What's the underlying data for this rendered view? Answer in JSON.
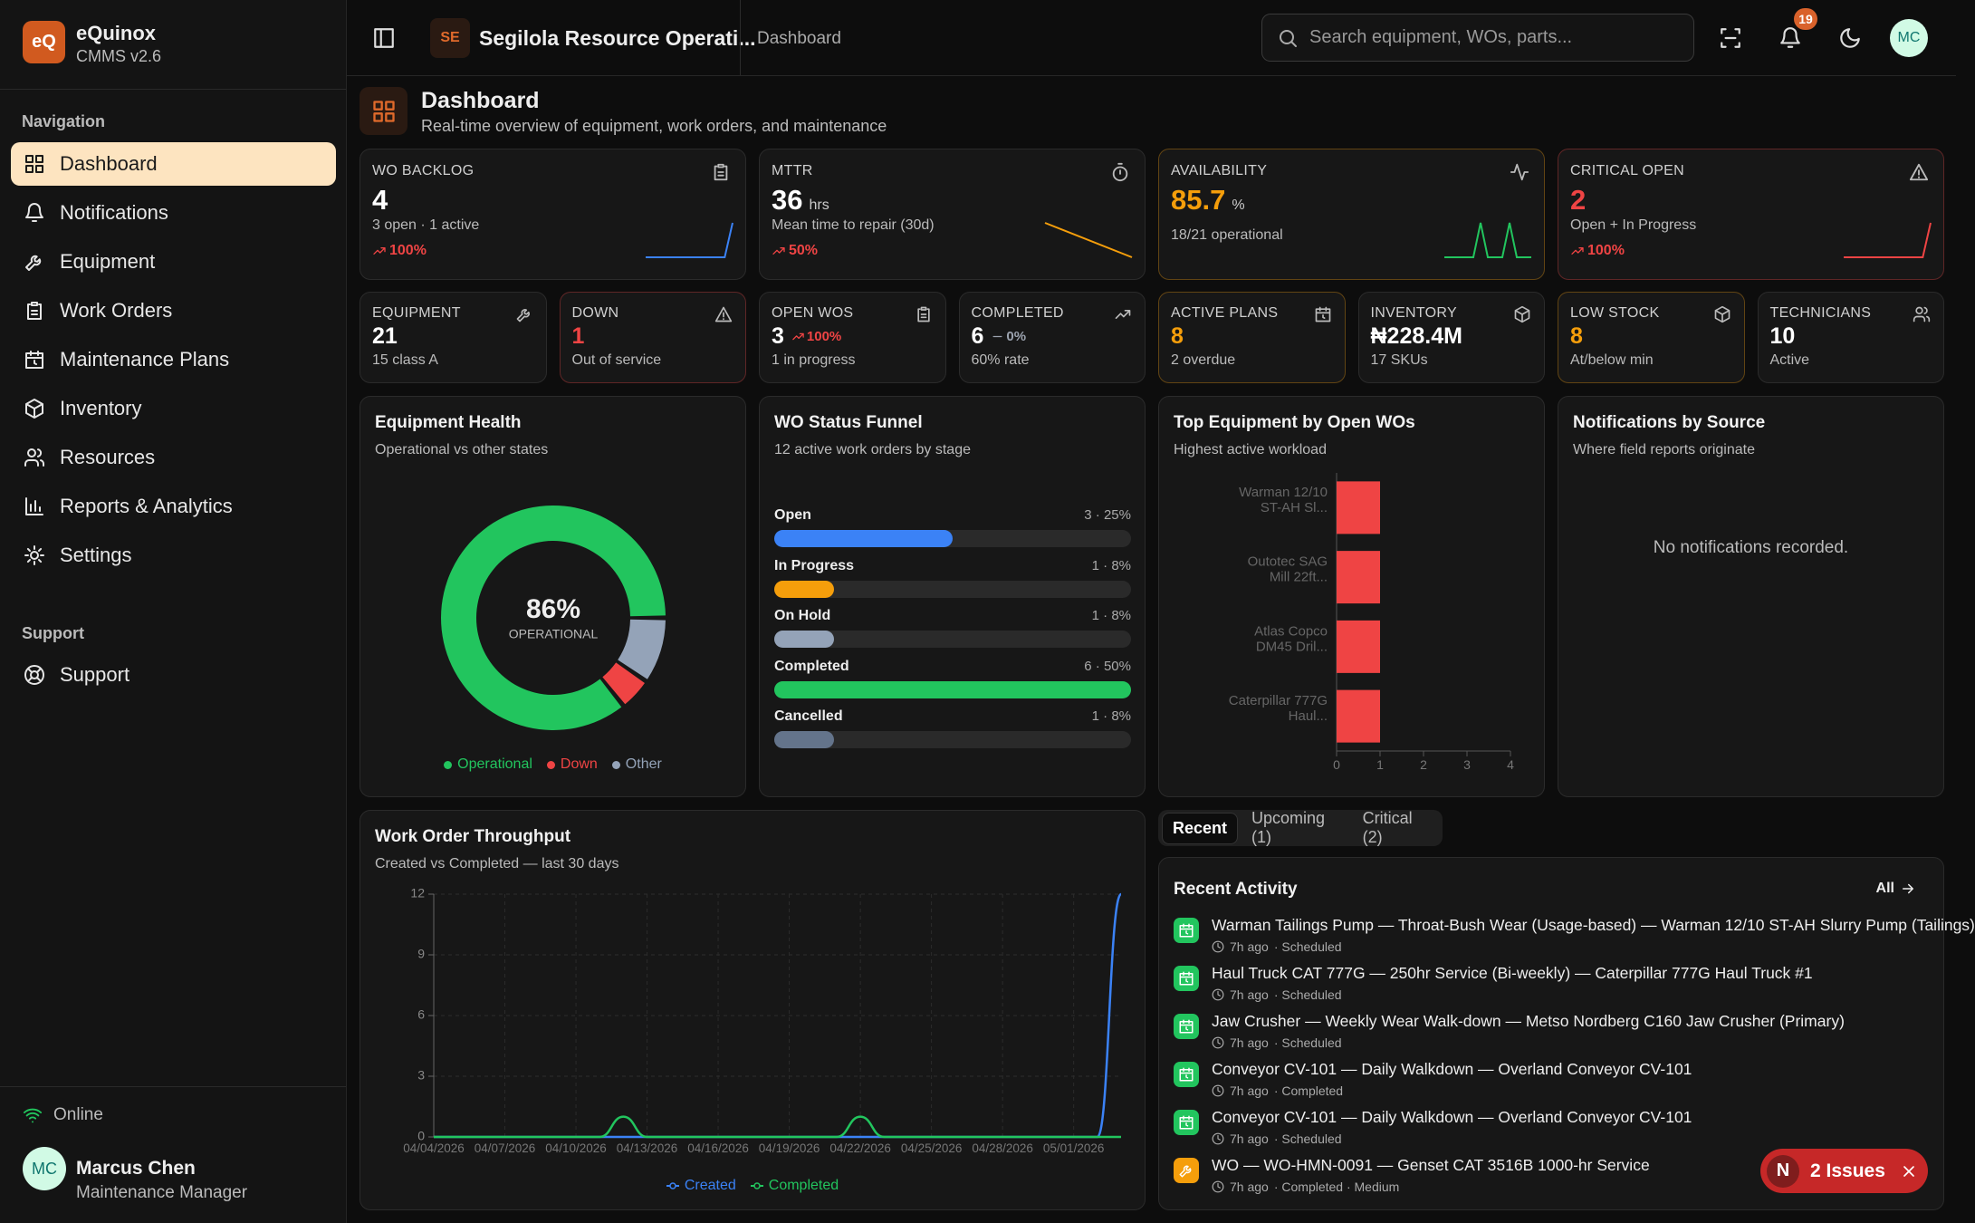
{
  "sidebar": {
    "logo": "eQ",
    "app_name": "eQuinox",
    "version": "CMMS v2.6",
    "nav_heading": "Navigation",
    "nav": [
      "Dashboard",
      "Notifications",
      "Equipment",
      "Work Orders",
      "Maintenance Plans",
      "Inventory",
      "Resources",
      "Reports & Analytics",
      "Settings"
    ],
    "support_heading": "Support",
    "support_nav": [
      "Support"
    ],
    "status": "Online",
    "user": {
      "initials": "MC",
      "name": "Marcus Chen",
      "role": "Maintenance Manager"
    }
  },
  "topbar": {
    "org_initials": "SE",
    "org_name": "Segilola Resource Operati...",
    "breadcrumb": "Dashboard",
    "search_placeholder": "Search equipment, WOs, parts...",
    "notification_count": "19",
    "avatar": "MC"
  },
  "header": {
    "title": "Dashboard",
    "subtitle": "Real-time overview of equipment, work orders, and maintenance"
  },
  "kpis": [
    {
      "label": "WO BACKLOG",
      "value": "4",
      "sub": "3 open · 1 active",
      "trend": "100%",
      "trend_direction": "up",
      "spark": [
        0,
        0,
        0,
        0,
        0,
        0,
        0,
        0,
        0,
        0,
        0,
        4
      ],
      "spark_color": "#3b82f6"
    },
    {
      "label": "MTTR",
      "value": "36",
      "unit": "hrs",
      "sub": "Mean time to repair (30d)",
      "trend": "50%",
      "trend_direction": "up",
      "spark": [
        72,
        36
      ],
      "spark_color": "#f59e0b"
    },
    {
      "label": "AVAILABILITY",
      "value": "85.7",
      "unit": "%",
      "sub": "18/21 operational",
      "value_color": "#f59e0b",
      "spark": [
        0,
        0,
        0,
        0,
        0,
        1,
        0,
        0,
        0,
        1,
        0,
        0,
        0
      ],
      "spark_color": "#22c55e"
    },
    {
      "label": "CRITICAL OPEN",
      "value": "2",
      "sub": "Open + In Progress",
      "trend": "100%",
      "trend_direction": "up",
      "value_color": "#ef4444",
      "spark": [
        0,
        0,
        0,
        0,
        0,
        0,
        0,
        0,
        0,
        0,
        0,
        2
      ],
      "spark_color": "#ef4444"
    }
  ],
  "stats": [
    {
      "label": "EQUIPMENT",
      "value": "21",
      "sub": "15 class A"
    },
    {
      "label": "DOWN",
      "value": "1",
      "sub": "Out of service",
      "value_color": "#ef4444"
    },
    {
      "label": "OPEN WOS",
      "value": "3",
      "trend": "100%",
      "trend_direction": "up",
      "trend_color": "#ef4444",
      "sub": "1 in progress"
    },
    {
      "label": "COMPLETED",
      "value": "6",
      "trend": "0%",
      "trend_direction": "flat",
      "trend_color": "#9ca3af",
      "sub": "60% rate"
    },
    {
      "label": "ACTIVE PLANS",
      "value": "8",
      "sub": "2 overdue",
      "value_color": "#f59e0b"
    },
    {
      "label": "INVENTORY",
      "value": "₦228.4M",
      "sub": "17 SKUs"
    },
    {
      "label": "LOW STOCK",
      "value": "8",
      "sub": "At/below min",
      "value_color": "#f59e0b"
    },
    {
      "label": "TECHNICIANS",
      "value": "10",
      "sub": "Active"
    }
  ],
  "chart_data": [
    {
      "type": "pie",
      "title": "Equipment Health",
      "subtitle": "Operational vs other states",
      "categories": [
        "Operational",
        "Down",
        "Other"
      ],
      "values": [
        18,
        1,
        2
      ],
      "colors": [
        "#22c55e",
        "#ef4444",
        "#94a3b8"
      ],
      "center_value": "86%",
      "center_label": "OPERATIONAL"
    },
    {
      "type": "bar",
      "title": "WO Status Funnel",
      "subtitle": "12 active work orders by stage",
      "categories": [
        "Open",
        "In Progress",
        "On Hold",
        "Completed",
        "Cancelled"
      ],
      "values": [
        3,
        1,
        1,
        6,
        1
      ],
      "value_labels": [
        "3 · 25%",
        "1 · 8%",
        "1 · 8%",
        "6 · 50%",
        "1 · 8%"
      ],
      "colors": [
        "#3b82f6",
        "#f59e0b",
        "#94a3b8",
        "#22c55e",
        "#64748b"
      ]
    },
    {
      "type": "bar",
      "title": "Top Equipment by Open WOs",
      "subtitle": "Highest active workload",
      "categories": [
        [
          "Warman 12/10",
          "ST-AH Sl..."
        ],
        [
          "Outotec SAG",
          "Mill 22ft..."
        ],
        [
          "Atlas Copco",
          "DM45 Dril..."
        ],
        [
          "Caterpillar 777G",
          "Haul..."
        ]
      ],
      "values": [
        1,
        1,
        1,
        1
      ],
      "color": "#ef4444",
      "xlim": [
        0,
        4
      ],
      "xticks": [
        0,
        1,
        2,
        3,
        4
      ]
    },
    {
      "type": "line",
      "title": "Work Order Throughput",
      "subtitle": "Created vs Completed — last 30 days",
      "x": [
        "04/04/2026",
        null,
        null,
        "04/07/2026",
        null,
        null,
        "04/10/2026",
        null,
        null,
        "04/13/2026",
        null,
        null,
        "04/16/2026",
        null,
        null,
        "04/19/2026",
        null,
        null,
        "04/22/2026",
        null,
        null,
        "04/25/2026",
        null,
        null,
        "04/28/2026",
        null,
        null,
        "05/01/2026",
        null,
        null
      ],
      "series": [
        {
          "name": "Created",
          "color": "#3b82f6",
          "values": [
            0,
            0,
            0,
            0,
            0,
            0,
            0,
            0,
            0,
            0,
            0,
            0,
            0,
            0,
            0,
            0,
            0,
            0,
            0,
            0,
            0,
            0,
            0,
            0,
            0,
            0,
            0,
            0,
            0,
            12
          ]
        },
        {
          "name": "Completed",
          "color": "#22c55e",
          "values": [
            0,
            0,
            0,
            0,
            0,
            0,
            0,
            0,
            1,
            0,
            0,
            0,
            0,
            0,
            0,
            0,
            0,
            0,
            1,
            0,
            0,
            0,
            0,
            0,
            0,
            0,
            0,
            0,
            0,
            0
          ]
        }
      ],
      "ylim": [
        0,
        12
      ],
      "yticks": [
        0,
        3,
        6,
        9,
        12
      ],
      "grid": true
    }
  ],
  "notifications_panel": {
    "title": "Notifications by Source",
    "subtitle": "Where field reports originate",
    "empty_message": "No notifications recorded."
  },
  "activity": {
    "tabs": [
      "Recent",
      "Upcoming (1)",
      "Critical (2)"
    ],
    "title": "Recent Activity",
    "link": "All",
    "items": [
      {
        "title": "Warman Tailings Pump — Throat-Bush Wear (Usage-based) — Warman 12/10 ST-AH Slurry Pump (Tailings)",
        "time": "7h ago",
        "status": "· Scheduled",
        "kind": "plan",
        "color": "#22c55e"
      },
      {
        "title": "Haul Truck CAT 777G — 250hr Service (Bi-weekly) — Caterpillar 777G Haul Truck #1",
        "time": "7h ago",
        "status": "· Scheduled",
        "kind": "plan",
        "color": "#22c55e"
      },
      {
        "title": "Jaw Crusher — Weekly Wear Walk-down — Metso Nordberg C160 Jaw Crusher (Primary)",
        "time": "7h ago",
        "status": "· Scheduled",
        "kind": "plan",
        "color": "#22c55e"
      },
      {
        "title": "Conveyor CV-101 — Daily Walkdown — Overland Conveyor CV-101",
        "time": "7h ago",
        "status": "· Completed",
        "kind": "plan",
        "color": "#22c55e"
      },
      {
        "title": "Conveyor CV-101 — Daily Walkdown — Overland Conveyor CV-101",
        "time": "7h ago",
        "status": "· Scheduled",
        "kind": "plan",
        "color": "#22c55e"
      },
      {
        "title": "WO — WO-HMN-0091 — Genset CAT 3516B 1000-hr Service",
        "time": "7h ago",
        "status": "· Completed · Medium",
        "kind": "wo",
        "color": "#f59e0b"
      }
    ]
  },
  "issues_badge": {
    "icon": "N",
    "label": "2 Issues"
  }
}
